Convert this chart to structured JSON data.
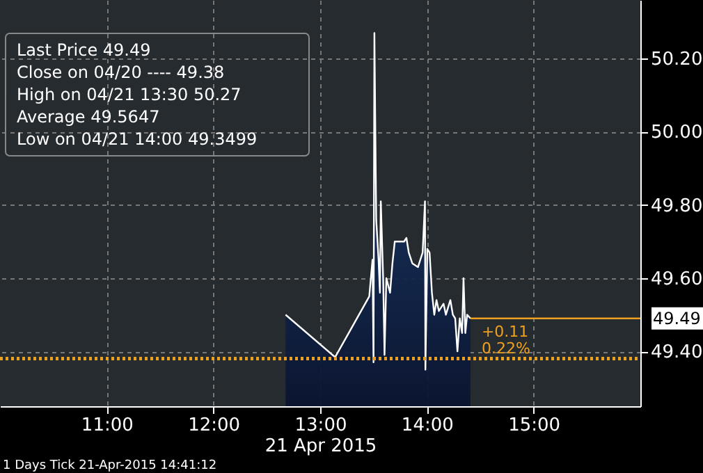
{
  "chart_data": {
    "type": "area",
    "xlabel": "21 Apr 2015",
    "x": [
      12.676,
      13.14,
      13.46,
      13.49,
      13.5,
      13.508,
      13.525,
      13.547,
      13.56,
      13.568,
      13.59,
      13.603,
      13.62,
      13.655,
      13.677,
      13.699,
      13.786,
      13.808,
      13.83,
      13.864,
      13.916,
      13.96,
      13.982,
      13.986,
      14.004,
      14.025,
      14.047,
      14.069,
      14.09,
      14.112,
      14.156,
      14.178,
      14.22,
      14.243,
      14.265,
      14.286,
      14.308,
      14.33,
      14.343,
      14.36,
      14.377,
      14.408
    ],
    "series": [
      {
        "color": "#ffffff",
        "values": [
          49.5,
          49.384,
          49.55,
          49.65,
          49.37,
          50.27,
          49.76,
          49.65,
          49.56,
          49.81,
          49.6,
          49.39,
          49.6,
          49.56,
          49.64,
          49.7,
          49.7,
          49.71,
          49.67,
          49.64,
          49.63,
          49.67,
          49.81,
          49.35,
          49.68,
          49.67,
          49.56,
          49.5,
          49.54,
          49.51,
          49.53,
          49.5,
          49.54,
          49.5,
          49.49,
          49.4,
          49.49,
          49.45,
          49.6,
          49.45,
          49.5,
          49.49
        ]
      }
    ],
    "xlim": [
      10,
      16
    ],
    "xticks": [
      {
        "value": 11,
        "label": "11:00"
      },
      {
        "value": 12,
        "label": "12:00"
      },
      {
        "value": 13,
        "label": "13:00"
      },
      {
        "value": 14,
        "label": "14:00"
      },
      {
        "value": 15,
        "label": "15:00"
      }
    ],
    "ylim": [
      49.25,
      50.36
    ],
    "yticks": [
      {
        "value": 49.4,
        "label": "49.40"
      },
      {
        "value": 49.6,
        "label": "49.60"
      },
      {
        "value": 49.8,
        "label": "49.80"
      },
      {
        "value": 50.0,
        "label": "50.00"
      },
      {
        "value": 50.2,
        "label": "50.20"
      }
    ],
    "grid": true,
    "ref_lines": [
      {
        "axis": "y",
        "value": 49.38,
        "color": "#f0a020",
        "line_style": "dotted"
      },
      {
        "axis": "y",
        "value": 49.49,
        "label": "49.49",
        "color": "#f0a020",
        "line_style": "solid"
      }
    ],
    "annotations": [
      "+0.11",
      "0.22%",
      "Last Price 49.49",
      "Close on 04/20 ---- 49.38",
      "High on 04/21 13:30 50.27",
      "Average 49.5647",
      "Low on 04/21 14:00 49.3499",
      "1 Days  Tick  21-Apr-2015 14:41:12"
    ]
  }
}
